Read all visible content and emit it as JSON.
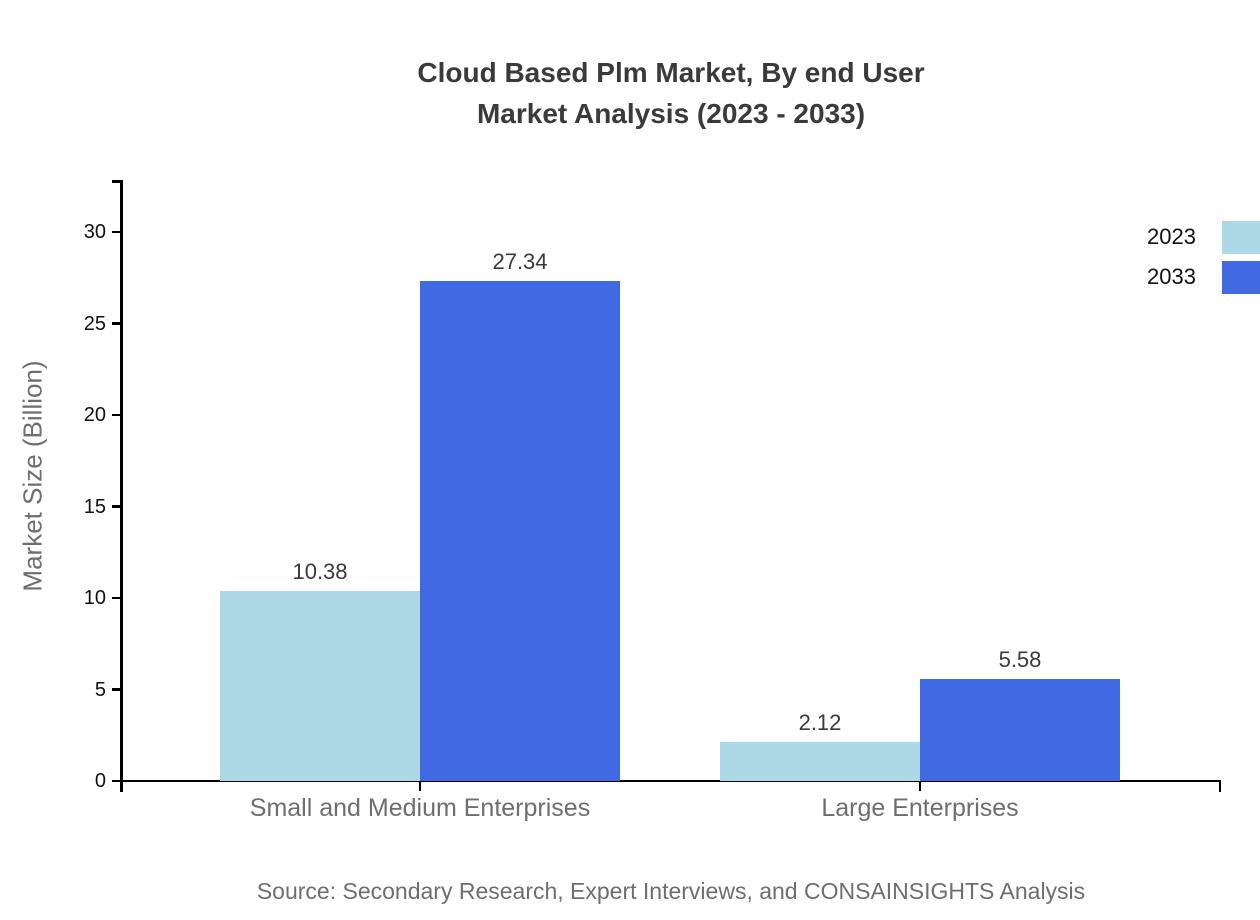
{
  "title": {
    "line1": "Cloud Based Plm Market, By end User",
    "line2": "Market Analysis (2023 - 2033)"
  },
  "source_note": "Source: Secondary Research, Expert Interviews, and CONSAINSIGHTS Analysis",
  "chart_data": {
    "type": "bar",
    "title": "Cloud Based Plm Market, By end User Market Analysis (2023 - 2033)",
    "categories": [
      "Small and Medium Enterprises",
      "Large Enterprises"
    ],
    "series": [
      {
        "name": "2023",
        "color": "#ADD8E6",
        "values": [
          10.38,
          2.12
        ]
      },
      {
        "name": "2033",
        "color": "#4169E1",
        "values": [
          27.34,
          5.58
        ]
      }
    ],
    "xlabel": "",
    "ylabel": "Market Size (Billion)",
    "ylim": [
      0,
      33
    ],
    "yticks": [
      0,
      5,
      10,
      15,
      20,
      25,
      30
    ],
    "grid": false,
    "legend_position": "top-right",
    "value_labels_shown": true
  },
  "colors": {
    "axis": "#000000",
    "title_text": "#3a3a3a",
    "tick_text": "#111111",
    "category_text": "#6e6e6e",
    "source_text": "#6e6e6e",
    "background": "#ffffff"
  }
}
